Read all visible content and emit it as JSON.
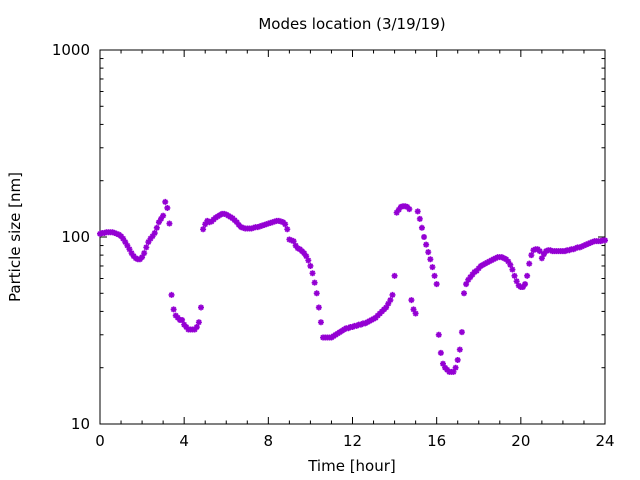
{
  "chart_data": {
    "type": "scatter",
    "title": "Modes location (3/19/19)",
    "xlabel": "Time [hour]",
    "ylabel": "Particle size [nm]",
    "xlim": [
      0,
      24
    ],
    "ylim": [
      10,
      1000
    ],
    "yscale": "log",
    "x_ticks": [
      "0",
      "4",
      "8",
      "12",
      "16",
      "20",
      "24"
    ],
    "y_ticks": [
      "10",
      "100",
      "1000"
    ],
    "grid": false,
    "legend": "none",
    "marker_color": "#9400d3",
    "series": [
      {
        "points": [
          [
            0.0,
            104
          ],
          [
            0.1,
            105
          ],
          [
            0.2,
            105
          ],
          [
            0.3,
            106
          ],
          [
            0.4,
            106
          ],
          [
            0.5,
            106
          ],
          [
            0.6,
            106
          ],
          [
            0.7,
            105
          ],
          [
            0.8,
            104
          ],
          [
            0.9,
            103
          ],
          [
            1.0,
            101
          ],
          [
            1.1,
            98
          ],
          [
            1.2,
            94
          ],
          [
            1.3,
            90
          ],
          [
            1.4,
            86
          ],
          [
            1.5,
            82
          ],
          [
            1.6,
            79
          ],
          [
            1.7,
            77
          ],
          [
            1.8,
            76
          ],
          [
            1.9,
            76
          ],
          [
            2.0,
            78
          ],
          [
            2.1,
            82
          ],
          [
            2.2,
            88
          ],
          [
            2.3,
            94
          ],
          [
            2.4,
            98
          ],
          [
            2.5,
            101
          ],
          [
            2.6,
            105
          ],
          [
            2.7,
            112
          ],
          [
            2.8,
            120
          ],
          [
            2.9,
            125
          ],
          [
            3.0,
            130
          ],
          [
            3.1,
            154
          ],
          [
            3.2,
            143
          ],
          [
            3.3,
            118
          ],
          [
            3.4,
            49
          ],
          [
            3.5,
            41
          ],
          [
            3.6,
            38
          ],
          [
            3.7,
            37
          ],
          [
            3.8,
            36
          ],
          [
            3.9,
            36
          ],
          [
            4.0,
            34
          ],
          [
            4.1,
            33
          ],
          [
            4.2,
            32
          ],
          [
            4.3,
            32
          ],
          [
            4.4,
            32
          ],
          [
            4.5,
            32
          ],
          [
            4.6,
            33
          ],
          [
            4.7,
            35
          ],
          [
            4.8,
            42
          ],
          [
            4.9,
            110
          ],
          [
            5.0,
            117
          ],
          [
            5.1,
            122
          ],
          [
            5.2,
            120
          ],
          [
            5.3,
            121
          ],
          [
            5.4,
            124
          ],
          [
            5.5,
            127
          ],
          [
            5.6,
            129
          ],
          [
            5.7,
            131
          ],
          [
            5.8,
            133
          ],
          [
            5.9,
            133
          ],
          [
            6.0,
            132
          ],
          [
            6.1,
            130
          ],
          [
            6.2,
            128
          ],
          [
            6.3,
            126
          ],
          [
            6.4,
            123
          ],
          [
            6.5,
            120
          ],
          [
            6.6,
            116
          ],
          [
            6.7,
            113
          ],
          [
            6.8,
            112
          ],
          [
            6.9,
            111
          ],
          [
            7.0,
            111
          ],
          [
            7.1,
            111
          ],
          [
            7.2,
            111
          ],
          [
            7.3,
            112
          ],
          [
            7.4,
            113
          ],
          [
            7.5,
            113
          ],
          [
            7.6,
            114
          ],
          [
            7.7,
            115
          ],
          [
            7.8,
            116
          ],
          [
            7.9,
            117
          ],
          [
            8.0,
            118
          ],
          [
            8.1,
            119
          ],
          [
            8.2,
            120
          ],
          [
            8.3,
            121
          ],
          [
            8.4,
            122
          ],
          [
            8.5,
            122
          ],
          [
            8.6,
            121
          ],
          [
            8.7,
            120
          ],
          [
            8.8,
            117
          ],
          [
            8.9,
            110
          ],
          [
            9.0,
            97
          ],
          [
            9.1,
            96
          ],
          [
            9.2,
            95
          ],
          [
            9.3,
            90
          ],
          [
            9.4,
            87
          ],
          [
            9.5,
            86
          ],
          [
            9.6,
            84
          ],
          [
            9.7,
            82
          ],
          [
            9.8,
            79
          ],
          [
            9.9,
            75
          ],
          [
            10.0,
            70
          ],
          [
            10.1,
            64
          ],
          [
            10.2,
            57
          ],
          [
            10.3,
            50
          ],
          [
            10.4,
            42
          ],
          [
            10.5,
            35
          ],
          [
            10.6,
            29
          ],
          [
            10.7,
            29
          ],
          [
            10.8,
            29
          ],
          [
            10.9,
            29
          ],
          [
            11.0,
            29
          ],
          [
            11.1,
            29.5
          ],
          [
            11.2,
            30
          ],
          [
            11.3,
            30.5
          ],
          [
            11.4,
            31
          ],
          [
            11.5,
            31.5
          ],
          [
            11.6,
            32
          ],
          [
            11.7,
            32.5
          ],
          [
            11.8,
            32.5
          ],
          [
            11.9,
            33
          ],
          [
            12.0,
            33
          ],
          [
            12.1,
            33.5
          ],
          [
            12.2,
            33.5
          ],
          [
            12.3,
            34
          ],
          [
            12.4,
            34
          ],
          [
            12.5,
            34.5
          ],
          [
            12.6,
            34.5
          ],
          [
            12.7,
            35
          ],
          [
            12.8,
            35.5
          ],
          [
            12.9,
            36
          ],
          [
            13.0,
            36.5
          ],
          [
            13.1,
            37
          ],
          [
            13.2,
            38
          ],
          [
            13.3,
            39
          ],
          [
            13.4,
            40
          ],
          [
            13.5,
            41
          ],
          [
            13.6,
            42
          ],
          [
            13.7,
            44
          ],
          [
            13.8,
            46
          ],
          [
            13.9,
            49
          ],
          [
            14.0,
            62
          ],
          [
            14.1,
            135
          ],
          [
            14.2,
            140
          ],
          [
            14.3,
            145
          ],
          [
            14.4,
            146
          ],
          [
            14.5,
            146
          ],
          [
            14.6,
            145
          ],
          [
            14.7,
            141
          ],
          [
            14.8,
            46
          ],
          [
            14.9,
            41
          ],
          [
            15.0,
            39
          ],
          [
            15.1,
            137
          ],
          [
            15.2,
            125
          ],
          [
            15.3,
            112
          ],
          [
            15.4,
            100
          ],
          [
            15.5,
            91
          ],
          [
            15.6,
            83
          ],
          [
            15.7,
            76
          ],
          [
            15.8,
            69
          ],
          [
            15.9,
            62
          ],
          [
            16.0,
            56
          ],
          [
            16.1,
            30
          ],
          [
            16.2,
            24
          ],
          [
            16.3,
            21
          ],
          [
            16.4,
            20
          ],
          [
            16.5,
            19.5
          ],
          [
            16.6,
            19
          ],
          [
            16.7,
            19
          ],
          [
            16.8,
            19
          ],
          [
            16.9,
            20
          ],
          [
            17.0,
            22
          ],
          [
            17.1,
            25
          ],
          [
            17.2,
            31
          ],
          [
            17.3,
            50
          ],
          [
            17.4,
            56
          ],
          [
            17.5,
            59
          ],
          [
            17.6,
            61
          ],
          [
            17.7,
            63
          ],
          [
            17.8,
            65
          ],
          [
            17.9,
            66
          ],
          [
            18.0,
            68
          ],
          [
            18.1,
            70
          ],
          [
            18.2,
            71
          ],
          [
            18.3,
            72
          ],
          [
            18.4,
            73
          ],
          [
            18.5,
            74
          ],
          [
            18.6,
            75
          ],
          [
            18.7,
            76
          ],
          [
            18.8,
            77
          ],
          [
            18.9,
            78
          ],
          [
            19.0,
            78
          ],
          [
            19.1,
            78
          ],
          [
            19.2,
            77
          ],
          [
            19.3,
            76
          ],
          [
            19.4,
            74
          ],
          [
            19.5,
            71
          ],
          [
            19.6,
            67
          ],
          [
            19.7,
            62
          ],
          [
            19.8,
            58
          ],
          [
            19.9,
            55
          ],
          [
            20.0,
            54
          ],
          [
            20.1,
            54
          ],
          [
            20.2,
            56
          ],
          [
            20.3,
            62
          ],
          [
            20.4,
            72
          ],
          [
            20.5,
            80
          ],
          [
            20.6,
            85
          ],
          [
            20.7,
            86
          ],
          [
            20.8,
            86
          ],
          [
            20.9,
            84
          ],
          [
            21.0,
            77
          ],
          [
            21.1,
            81
          ],
          [
            21.2,
            84
          ],
          [
            21.3,
            85
          ],
          [
            21.4,
            85
          ],
          [
            21.5,
            84
          ],
          [
            21.6,
            84
          ],
          [
            21.7,
            84
          ],
          [
            21.8,
            84
          ],
          [
            21.9,
            84
          ],
          [
            22.0,
            84
          ],
          [
            22.1,
            84
          ],
          [
            22.2,
            85
          ],
          [
            22.3,
            85
          ],
          [
            22.4,
            86
          ],
          [
            22.5,
            86
          ],
          [
            22.6,
            87
          ],
          [
            22.7,
            88
          ],
          [
            22.8,
            88
          ],
          [
            22.9,
            89
          ],
          [
            23.0,
            90
          ],
          [
            23.1,
            91
          ],
          [
            23.2,
            92
          ],
          [
            23.3,
            93
          ],
          [
            23.4,
            94
          ],
          [
            23.5,
            95
          ],
          [
            23.6,
            95
          ],
          [
            23.7,
            95
          ],
          [
            23.8,
            95
          ],
          [
            23.9,
            96
          ],
          [
            24.0,
            96
          ]
        ]
      }
    ]
  }
}
